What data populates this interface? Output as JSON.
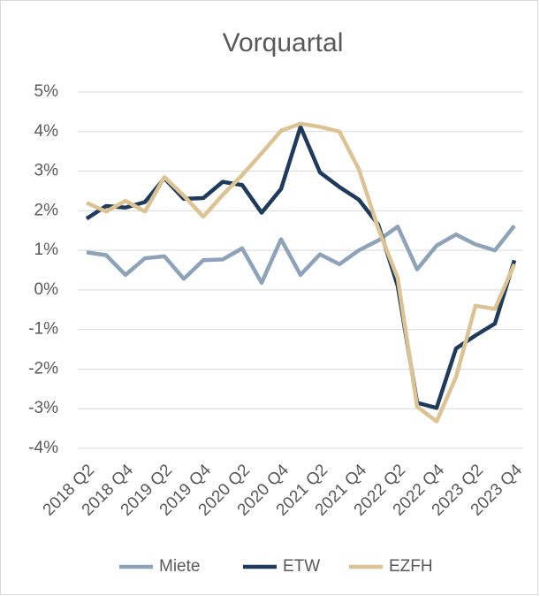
{
  "chart_data": {
    "type": "line",
    "title": "Vorquartal",
    "categories": [
      "2018 Q2",
      null,
      "2018 Q4",
      null,
      "2019 Q2",
      null,
      "2019 Q4",
      null,
      "2020 Q2",
      null,
      "2020 Q4",
      null,
      "2021 Q2",
      null,
      "2021 Q4",
      null,
      "2022 Q2",
      null,
      "2022 Q4",
      null,
      "2023 Q2",
      null,
      "2023 Q4"
    ],
    "series": [
      {
        "name": "Miete",
        "color": "#8ea3b8",
        "values": [
          0.95,
          0.88,
          0.38,
          0.8,
          0.85,
          0.28,
          0.75,
          0.77,
          1.05,
          0.18,
          1.28,
          0.38,
          0.9,
          0.65,
          1.0,
          1.25,
          1.6,
          0.52,
          1.12,
          1.4,
          1.15,
          1.0,
          1.62
        ]
      },
      {
        "name": "ETW",
        "color": "#1f3a5a",
        "values": [
          1.8,
          2.12,
          2.08,
          2.22,
          2.82,
          2.3,
          2.32,
          2.73,
          2.65,
          1.95,
          2.55,
          4.12,
          2.97,
          2.6,
          2.28,
          1.65,
          0.1,
          -2.85,
          -2.98,
          -1.48,
          -1.15,
          -0.85,
          0.75
        ]
      },
      {
        "name": "EZFH",
        "color": "#dcc394",
        "values": [
          2.2,
          1.98,
          2.25,
          1.98,
          2.85,
          2.38,
          1.85,
          2.4,
          2.9,
          3.45,
          4.02,
          4.2,
          4.12,
          4.0,
          3.05,
          1.55,
          0.3,
          -2.95,
          -3.32,
          -2.2,
          -0.4,
          -0.48,
          0.65
        ]
      }
    ],
    "ylim": [
      -4,
      5
    ],
    "yticks": [
      {
        "value": -4,
        "label": "-4%"
      },
      {
        "value": -3,
        "label": "-3%"
      },
      {
        "value": -2,
        "label": "-2%"
      },
      {
        "value": -1,
        "label": "-1%"
      },
      {
        "value": 0,
        "label": "0%"
      },
      {
        "value": 1,
        "label": "1%"
      },
      {
        "value": 2,
        "label": "2%"
      },
      {
        "value": 3,
        "label": "3%"
      },
      {
        "value": 4,
        "label": "4%"
      },
      {
        "value": 5,
        "label": "5%"
      }
    ],
    "grid": true,
    "legend": "bottom"
  }
}
